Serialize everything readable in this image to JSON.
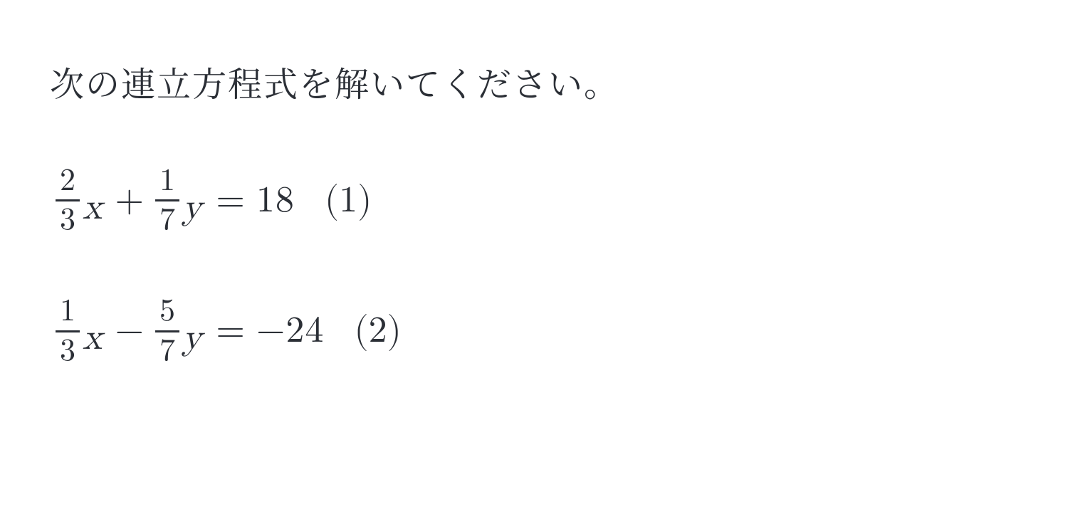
{
  "prompt": "次の連立方程式を解いてください。",
  "equations": [
    {
      "lhs": {
        "term1": {
          "frac_num": "2",
          "frac_den": "3",
          "var": "x"
        },
        "op": "+",
        "term2": {
          "frac_num": "1",
          "frac_den": "7",
          "var": "y"
        }
      },
      "eq": "=",
      "rhs": "18",
      "tag": "(1)"
    },
    {
      "lhs": {
        "term1": {
          "frac_num": "1",
          "frac_den": "3",
          "var": "x"
        },
        "op": "−",
        "term2": {
          "frac_num": "5",
          "frac_den": "7",
          "var": "y"
        }
      },
      "eq": "=",
      "rhs": "−24",
      "tag": "(2)"
    }
  ]
}
